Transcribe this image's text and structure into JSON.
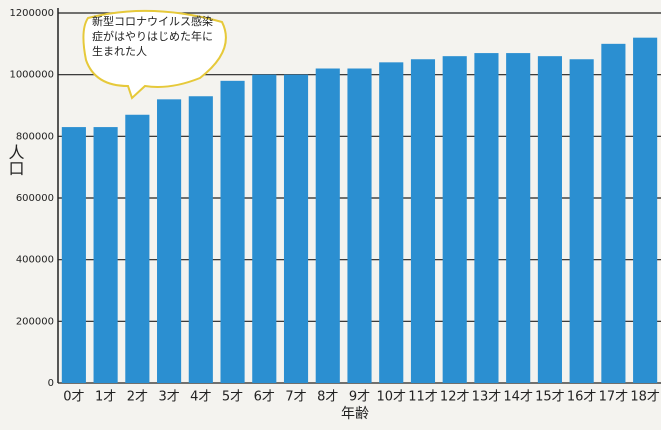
{
  "chart_data": {
    "type": "bar",
    "y_label": "人口",
    "x_label": "年齢",
    "annotation": "新型コロナウイルス感染症がはやりはじめた年に生まれた人",
    "categories": [
      "0才",
      "1才",
      "2才",
      "3才",
      "4才",
      "5才",
      "6才",
      "7才",
      "8才",
      "9才",
      "10才",
      "11才",
      "12才",
      "13才",
      "14才",
      "15才",
      "16才",
      "17才",
      "18才"
    ],
    "values": [
      830000,
      830000,
      870000,
      920000,
      930000,
      980000,
      1000000,
      1000000,
      1020000,
      1020000,
      1040000,
      1050000,
      1060000,
      1070000,
      1070000,
      1060000,
      1050000,
      1100000,
      1120000
    ],
    "color": "#2b8fd1",
    "ylim": [
      0,
      1200000
    ],
    "yticks": [
      0,
      200000,
      400000,
      600000,
      800000,
      1000000,
      1200000
    ],
    "grid": true
  }
}
